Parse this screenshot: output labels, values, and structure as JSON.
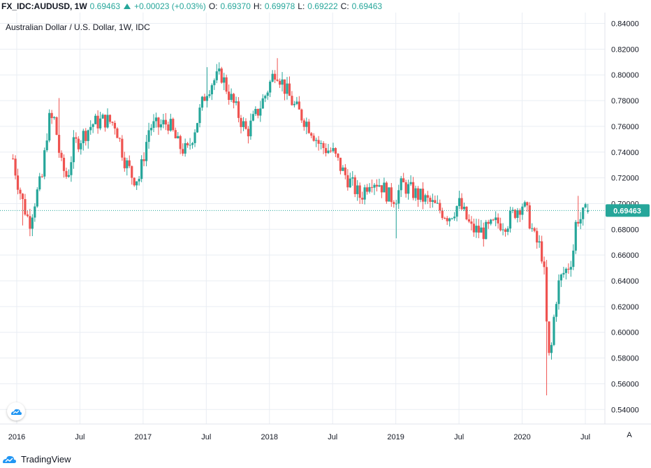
{
  "header": {
    "symbol": "FX_IDC:AUDUSD, 1W",
    "last": "0.69463",
    "change": "+0.00023 (+0.03%)",
    "open_label": "O:",
    "open": "0.69370",
    "high_label": "H:",
    "high": "0.69978",
    "low_label": "L:",
    "low": "0.69222",
    "close_label": "C:",
    "close": "0.69463"
  },
  "chart_title": "Australian Dollar / U.S. Dollar, 1W, IDC",
  "brand": "TradingView",
  "auto_scale_label": "A",
  "colors": {
    "up": "#26a69a",
    "down": "#ef5350",
    "grid": "#e9edf3",
    "axis_text": "#131722"
  },
  "chart_data": {
    "type": "candlestick",
    "title": "Australian Dollar / U.S. Dollar, 1W, IDC",
    "ylim": [
      0.53,
      0.845
    ],
    "y_ticks": [
      "0.84000",
      "0.82000",
      "0.80000",
      "0.78000",
      "0.76000",
      "0.74000",
      "0.72000",
      "0.70000",
      "0.68000",
      "0.66000",
      "0.64000",
      "0.62000",
      "0.60000",
      "0.58000",
      "0.56000",
      "0.54000"
    ],
    "x_ticks": [
      {
        "label": "2016",
        "t": 2016.0
      },
      {
        "label": "Jul",
        "t": 2016.5
      },
      {
        "label": "2017",
        "t": 2017.0
      },
      {
        "label": "Jul",
        "t": 2017.5
      },
      {
        "label": "2018",
        "t": 2018.0
      },
      {
        "label": "Jul",
        "t": 2018.5
      },
      {
        "label": "2019",
        "t": 2019.0
      },
      {
        "label": "Jul",
        "t": 2019.5
      },
      {
        "label": "2020",
        "t": 2020.0
      },
      {
        "label": "Jul",
        "t": 2020.5
      }
    ],
    "last_price_label": "0.69463",
    "last_price": 0.69463,
    "x_start": 2015.97,
    "x_end": 2020.52,
    "anchors": [
      [
        2015.97,
        0.735
      ],
      [
        2016.0,
        0.72
      ],
      [
        2016.05,
        0.7
      ],
      [
        2016.1,
        0.685
      ],
      [
        2016.15,
        0.705
      ],
      [
        2016.2,
        0.72
      ],
      [
        2016.25,
        0.765
      ],
      [
        2016.3,
        0.765
      ],
      [
        2016.35,
        0.73
      ],
      [
        2016.4,
        0.72
      ],
      [
        2016.45,
        0.745
      ],
      [
        2016.5,
        0.75
      ],
      [
        2016.6,
        0.762
      ],
      [
        2016.7,
        0.765
      ],
      [
        2016.78,
        0.762
      ],
      [
        2016.85,
        0.735
      ],
      [
        2016.92,
        0.72
      ],
      [
        2016.97,
        0.72
      ],
      [
        2017.05,
        0.76
      ],
      [
        2017.12,
        0.76
      ],
      [
        2017.2,
        0.763
      ],
      [
        2017.28,
        0.745
      ],
      [
        2017.35,
        0.74
      ],
      [
        2017.42,
        0.762
      ],
      [
        2017.5,
        0.788
      ],
      [
        2017.55,
        0.795
      ],
      [
        2017.62,
        0.8
      ],
      [
        2017.68,
        0.785
      ],
      [
        2017.75,
        0.77
      ],
      [
        2017.82,
        0.755
      ],
      [
        2017.9,
        0.77
      ],
      [
        2017.97,
        0.785
      ],
      [
        2018.05,
        0.805
      ],
      [
        2018.12,
        0.79
      ],
      [
        2018.2,
        0.775
      ],
      [
        2018.28,
        0.765
      ],
      [
        2018.33,
        0.758
      ],
      [
        2018.4,
        0.745
      ],
      [
        2018.5,
        0.74
      ],
      [
        2018.58,
        0.725
      ],
      [
        2018.65,
        0.715
      ],
      [
        2018.72,
        0.705
      ],
      [
        2018.8,
        0.72
      ],
      [
        2018.88,
        0.715
      ],
      [
        2018.95,
        0.705
      ],
      [
        2019.0,
        0.705
      ],
      [
        2019.05,
        0.715
      ],
      [
        2019.12,
        0.71
      ],
      [
        2019.2,
        0.705
      ],
      [
        2019.28,
        0.7
      ],
      [
        2019.35,
        0.695
      ],
      [
        2019.42,
        0.69
      ],
      [
        2019.5,
        0.7
      ],
      [
        2019.55,
        0.69
      ],
      [
        2019.6,
        0.68
      ],
      [
        2019.7,
        0.678
      ],
      [
        2019.8,
        0.685
      ],
      [
        2019.88,
        0.685
      ],
      [
        2019.95,
        0.695
      ],
      [
        2020.0,
        0.7
      ],
      [
        2020.05,
        0.69
      ],
      [
        2020.1,
        0.672
      ],
      [
        2020.15,
        0.665
      ],
      [
        2020.18,
        0.64
      ],
      [
        2020.2,
        0.59
      ],
      [
        2020.22,
        0.575
      ],
      [
        2020.25,
        0.61
      ],
      [
        2020.28,
        0.635
      ],
      [
        2020.32,
        0.645
      ],
      [
        2020.36,
        0.65
      ],
      [
        2020.4,
        0.66
      ],
      [
        2020.43,
        0.69
      ],
      [
        2020.46,
        0.688
      ],
      [
        2020.49,
        0.692
      ],
      [
        2020.52,
        0.6946
      ]
    ],
    "extremes": [
      [
        2016.05,
        0.683,
        "low"
      ],
      [
        2016.34,
        0.782,
        "high"
      ],
      [
        2017.5,
        0.806,
        "high"
      ],
      [
        2018.07,
        0.813,
        "high"
      ],
      [
        2019.0,
        0.673,
        "low"
      ],
      [
        2020.2,
        0.551,
        "low"
      ],
      [
        2020.45,
        0.706,
        "high"
      ]
    ]
  }
}
